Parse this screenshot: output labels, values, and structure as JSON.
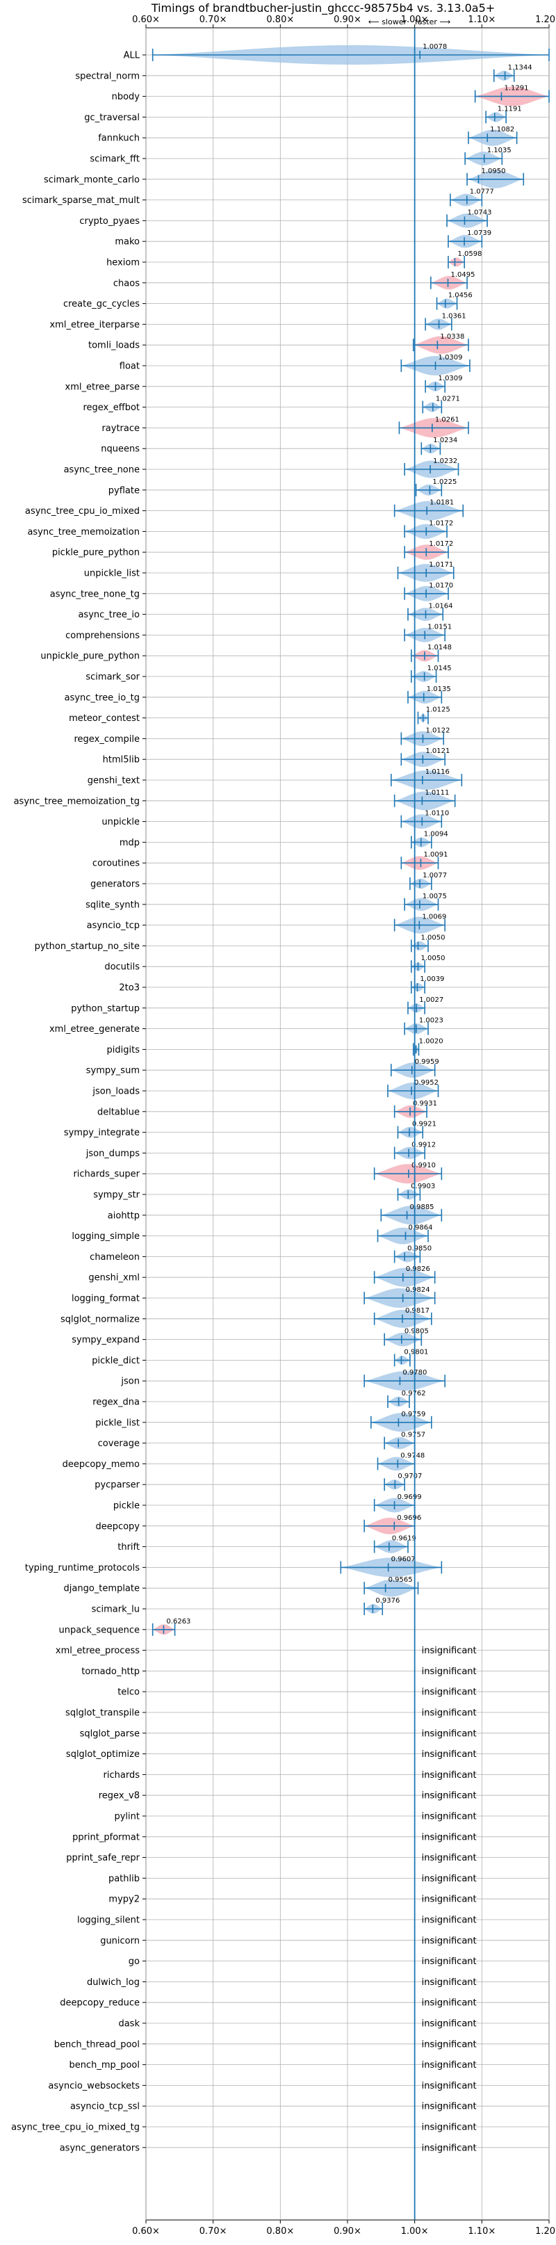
{
  "chart_data": {
    "type": "violin",
    "title": "Timings of brandtbucher-justin_ghccc-98575b4 vs. 3.13.0a5+",
    "annotation_slower": "⟵ slower",
    "annotation_faster": "faster ⟶",
    "xlim": [
      0.6,
      1.2
    ],
    "xticks": [
      0.6,
      0.7,
      0.8,
      0.9,
      1.0,
      1.1,
      1.2
    ],
    "xtick_labels": [
      "0.60×",
      "0.70×",
      "0.80×",
      "0.90×",
      "1.00×",
      "1.10×",
      "1.20×"
    ],
    "reference_line": 1.0,
    "grid": true,
    "colors": {
      "line": "#1f77b4",
      "violin_blue": "#9ec3e6",
      "violin_red": "#f4a6b0",
      "grid": "#b0b0b0"
    },
    "insignificant_label": "insignificant",
    "rows": [
      {
        "name": "ALL",
        "value": 1.0078,
        "label": "1.0078",
        "low": 0.61,
        "high": 1.2,
        "red": false
      },
      {
        "name": "spectral_norm",
        "value": 1.1344,
        "label": "1.1344",
        "low": 1.118,
        "high": 1.148,
        "red": false
      },
      {
        "name": "nbody",
        "value": 1.1291,
        "label": "1.1291",
        "low": 1.09,
        "high": 1.2,
        "red": true
      },
      {
        "name": "gc_traversal",
        "value": 1.1191,
        "label": "1.1191",
        "low": 1.106,
        "high": 1.136,
        "red": false
      },
      {
        "name": "fannkuch",
        "value": 1.1082,
        "label": "1.1082",
        "low": 1.08,
        "high": 1.152,
        "red": false
      },
      {
        "name": "scimark_fft",
        "value": 1.1035,
        "label": "1.1035",
        "low": 1.075,
        "high": 1.13,
        "red": false
      },
      {
        "name": "scimark_monte_carlo",
        "value": 1.095,
        "label": "1.0950",
        "low": 1.078,
        "high": 1.162,
        "red": false
      },
      {
        "name": "scimark_sparse_mat_mult",
        "value": 1.0777,
        "label": "1.0777",
        "low": 1.053,
        "high": 1.1,
        "red": false
      },
      {
        "name": "crypto_pyaes",
        "value": 1.0743,
        "label": "1.0743",
        "low": 1.048,
        "high": 1.108,
        "red": false
      },
      {
        "name": "mako",
        "value": 1.0739,
        "label": "1.0739",
        "low": 1.05,
        "high": 1.1,
        "red": false
      },
      {
        "name": "hexiom",
        "value": 1.0598,
        "label": "1.0598",
        "low": 1.05,
        "high": 1.074,
        "red": true
      },
      {
        "name": "chaos",
        "value": 1.0495,
        "label": "1.0495",
        "low": 1.024,
        "high": 1.078,
        "red": true
      },
      {
        "name": "create_gc_cycles",
        "value": 1.0456,
        "label": "1.0456",
        "low": 1.033,
        "high": 1.063,
        "red": false
      },
      {
        "name": "xml_etree_iterparse",
        "value": 1.0361,
        "label": "1.0361",
        "low": 1.016,
        "high": 1.055,
        "red": false
      },
      {
        "name": "tomli_loads",
        "value": 1.0338,
        "label": "1.0338",
        "low": 0.998,
        "high": 1.08,
        "red": true
      },
      {
        "name": "float",
        "value": 1.0309,
        "label": "1.0309",
        "low": 0.98,
        "high": 1.082,
        "red": false
      },
      {
        "name": "xml_etree_parse",
        "value": 1.0309,
        "label": "1.0309",
        "low": 1.016,
        "high": 1.045,
        "red": false
      },
      {
        "name": "regex_effbot",
        "value": 1.0271,
        "label": "1.0271",
        "low": 1.012,
        "high": 1.04,
        "red": false
      },
      {
        "name": "raytrace",
        "value": 1.0261,
        "label": "1.0261",
        "low": 0.977,
        "high": 1.08,
        "red": true
      },
      {
        "name": "nqueens",
        "value": 1.0234,
        "label": "1.0234",
        "low": 1.01,
        "high": 1.038,
        "red": false
      },
      {
        "name": "async_tree_none",
        "value": 1.0232,
        "label": "1.0232",
        "low": 0.985,
        "high": 1.065,
        "red": false
      },
      {
        "name": "pyflate",
        "value": 1.0225,
        "label": "1.0225",
        "low": 1.002,
        "high": 1.04,
        "red": false
      },
      {
        "name": "async_tree_cpu_io_mixed",
        "value": 1.0181,
        "label": "1.0181",
        "low": 0.97,
        "high": 1.072,
        "red": false
      },
      {
        "name": "async_tree_memoization",
        "value": 1.0172,
        "label": "1.0172",
        "low": 0.985,
        "high": 1.048,
        "red": false
      },
      {
        "name": "pickle_pure_python",
        "value": 1.0172,
        "label": "1.0172",
        "low": 0.985,
        "high": 1.05,
        "red": true
      },
      {
        "name": "unpickle_list",
        "value": 1.0171,
        "label": "1.0171",
        "low": 0.975,
        "high": 1.058,
        "red": false
      },
      {
        "name": "async_tree_none_tg",
        "value": 1.017,
        "label": "1.0170",
        "low": 0.985,
        "high": 1.05,
        "red": false
      },
      {
        "name": "async_tree_io",
        "value": 1.0164,
        "label": "1.0164",
        "low": 0.99,
        "high": 1.042,
        "red": false
      },
      {
        "name": "comprehensions",
        "value": 1.0151,
        "label": "1.0151",
        "low": 0.985,
        "high": 1.045,
        "red": false
      },
      {
        "name": "unpickle_pure_python",
        "value": 1.0148,
        "label": "1.0148",
        "low": 0.995,
        "high": 1.035,
        "red": true
      },
      {
        "name": "scimark_sor",
        "value": 1.0145,
        "label": "1.0145",
        "low": 0.995,
        "high": 1.032,
        "red": false
      },
      {
        "name": "async_tree_io_tg",
        "value": 1.0135,
        "label": "1.0135",
        "low": 0.99,
        "high": 1.04,
        "red": false
      },
      {
        "name": "meteor_contest",
        "value": 1.0125,
        "label": "1.0125",
        "low": 1.005,
        "high": 1.02,
        "red": false
      },
      {
        "name": "regex_compile",
        "value": 1.0122,
        "label": "1.0122",
        "low": 0.98,
        "high": 1.043,
        "red": false
      },
      {
        "name": "html5lib",
        "value": 1.0121,
        "label": "1.0121",
        "low": 0.98,
        "high": 1.045,
        "red": false
      },
      {
        "name": "genshi_text",
        "value": 1.0116,
        "label": "1.0116",
        "low": 0.965,
        "high": 1.07,
        "red": false
      },
      {
        "name": "async_tree_memoization_tg",
        "value": 1.0111,
        "label": "1.0111",
        "low": 0.97,
        "high": 1.06,
        "red": false
      },
      {
        "name": "unpickle",
        "value": 1.011,
        "label": "1.0110",
        "low": 0.98,
        "high": 1.04,
        "red": false
      },
      {
        "name": "mdp",
        "value": 1.0094,
        "label": "1.0094",
        "low": 0.995,
        "high": 1.025,
        "red": false
      },
      {
        "name": "coroutines",
        "value": 1.0091,
        "label": "1.0091",
        "low": 0.98,
        "high": 1.035,
        "red": true
      },
      {
        "name": "generators",
        "value": 1.0077,
        "label": "1.0077",
        "low": 0.993,
        "high": 1.025,
        "red": false
      },
      {
        "name": "sqlite_synth",
        "value": 1.0075,
        "label": "1.0075",
        "low": 0.985,
        "high": 1.035,
        "red": false
      },
      {
        "name": "asyncio_tcp",
        "value": 1.0069,
        "label": "1.0069",
        "low": 0.97,
        "high": 1.045,
        "red": false
      },
      {
        "name": "python_startup_no_site",
        "value": 1.005,
        "label": "1.0050",
        "low": 0.995,
        "high": 1.02,
        "red": false
      },
      {
        "name": "docutils",
        "value": 1.005,
        "label": "1.0050",
        "low": 0.995,
        "high": 1.015,
        "red": false
      },
      {
        "name": "2to3",
        "value": 1.0039,
        "label": "1.0039",
        "low": 0.995,
        "high": 1.015,
        "red": false
      },
      {
        "name": "python_startup",
        "value": 1.0027,
        "label": "1.0027",
        "low": 0.99,
        "high": 1.015,
        "red": false
      },
      {
        "name": "xml_etree_generate",
        "value": 1.0023,
        "label": "1.0023",
        "low": 0.985,
        "high": 1.02,
        "red": false
      },
      {
        "name": "pidigits",
        "value": 1.002,
        "label": "1.0020",
        "low": 0.998,
        "high": 1.006,
        "red": false
      },
      {
        "name": "sympy_sum",
        "value": 0.9959,
        "label": "0.9959",
        "low": 0.965,
        "high": 1.03,
        "red": false
      },
      {
        "name": "json_loads",
        "value": 0.9952,
        "label": "0.9952",
        "low": 0.96,
        "high": 1.035,
        "red": false
      },
      {
        "name": "deltablue",
        "value": 0.9931,
        "label": "0.9931",
        "low": 0.97,
        "high": 1.018,
        "red": true
      },
      {
        "name": "sympy_integrate",
        "value": 0.9921,
        "label": "0.9921",
        "low": 0.975,
        "high": 1.012,
        "red": false
      },
      {
        "name": "json_dumps",
        "value": 0.9912,
        "label": "0.9912",
        "low": 0.97,
        "high": 1.015,
        "red": false
      },
      {
        "name": "richards_super",
        "value": 0.991,
        "label": "0.9910",
        "low": 0.94,
        "high": 1.04,
        "red": true
      },
      {
        "name": "sympy_str",
        "value": 0.9903,
        "label": "0.9903",
        "low": 0.975,
        "high": 1.008,
        "red": false
      },
      {
        "name": "aiohttp",
        "value": 0.9885,
        "label": "0.9885",
        "low": 0.95,
        "high": 1.04,
        "red": false
      },
      {
        "name": "logging_simple",
        "value": 0.9864,
        "label": "0.9864",
        "low": 0.945,
        "high": 1.02,
        "red": false
      },
      {
        "name": "chameleon",
        "value": 0.985,
        "label": "0.9850",
        "low": 0.97,
        "high": 1.008,
        "red": false
      },
      {
        "name": "genshi_xml",
        "value": 0.9826,
        "label": "0.9826",
        "low": 0.94,
        "high": 1.03,
        "red": false
      },
      {
        "name": "logging_format",
        "value": 0.9824,
        "label": "0.9824",
        "low": 0.925,
        "high": 1.03,
        "red": false
      },
      {
        "name": "sqlglot_normalize",
        "value": 0.9817,
        "label": "0.9817",
        "low": 0.94,
        "high": 1.025,
        "red": false
      },
      {
        "name": "sympy_expand",
        "value": 0.9805,
        "label": "0.9805",
        "low": 0.955,
        "high": 1.01,
        "red": false
      },
      {
        "name": "pickle_dict",
        "value": 0.9801,
        "label": "0.9801",
        "low": 0.97,
        "high": 0.993,
        "red": false
      },
      {
        "name": "json",
        "value": 0.978,
        "label": "0.9780",
        "low": 0.925,
        "high": 1.045,
        "red": false
      },
      {
        "name": "regex_dna",
        "value": 0.9762,
        "label": "0.9762",
        "low": 0.96,
        "high": 0.992,
        "red": false
      },
      {
        "name": "pickle_list",
        "value": 0.9759,
        "label": "0.9759",
        "low": 0.935,
        "high": 1.025,
        "red": false
      },
      {
        "name": "coverage",
        "value": 0.9757,
        "label": "0.9757",
        "low": 0.955,
        "high": 1.0,
        "red": false
      },
      {
        "name": "deepcopy_memo",
        "value": 0.9748,
        "label": "0.9748",
        "low": 0.945,
        "high": 1.0,
        "red": false
      },
      {
        "name": "pycparser",
        "value": 0.9707,
        "label": "0.9707",
        "low": 0.955,
        "high": 0.985,
        "red": false
      },
      {
        "name": "pickle",
        "value": 0.9699,
        "label": "0.9699",
        "low": 0.94,
        "high": 1.0,
        "red": false
      },
      {
        "name": "deepcopy",
        "value": 0.9696,
        "label": "0.9696",
        "low": 0.925,
        "high": 1.0,
        "red": true
      },
      {
        "name": "thrift",
        "value": 0.9619,
        "label": "0.9619",
        "low": 0.94,
        "high": 0.99,
        "red": false
      },
      {
        "name": "typing_runtime_protocols",
        "value": 0.9607,
        "label": "0.9607",
        "low": 0.89,
        "high": 1.04,
        "red": false
      },
      {
        "name": "django_template",
        "value": 0.9565,
        "label": "0.9565",
        "low": 0.925,
        "high": 1.005,
        "red": false
      },
      {
        "name": "scimark_lu",
        "value": 0.9376,
        "label": "0.9376",
        "low": 0.925,
        "high": 0.952,
        "red": false
      },
      {
        "name": "unpack_sequence",
        "value": 0.6263,
        "label": "0.6263",
        "low": 0.61,
        "high": 0.643,
        "red": true
      },
      {
        "name": "xml_etree_process",
        "insignificant": true
      },
      {
        "name": "tornado_http",
        "insignificant": true
      },
      {
        "name": "telco",
        "insignificant": true
      },
      {
        "name": "sqlglot_transpile",
        "insignificant": true
      },
      {
        "name": "sqlglot_parse",
        "insignificant": true
      },
      {
        "name": "sqlglot_optimize",
        "insignificant": true
      },
      {
        "name": "richards",
        "insignificant": true
      },
      {
        "name": "regex_v8",
        "insignificant": true
      },
      {
        "name": "pylint",
        "insignificant": true
      },
      {
        "name": "pprint_pformat",
        "insignificant": true
      },
      {
        "name": "pprint_safe_repr",
        "insignificant": true
      },
      {
        "name": "pathlib",
        "insignificant": true
      },
      {
        "name": "mypy2",
        "insignificant": true
      },
      {
        "name": "logging_silent",
        "insignificant": true
      },
      {
        "name": "gunicorn",
        "insignificant": true
      },
      {
        "name": "go",
        "insignificant": true
      },
      {
        "name": "dulwich_log",
        "insignificant": true
      },
      {
        "name": "deepcopy_reduce",
        "insignificant": true
      },
      {
        "name": "dask",
        "insignificant": true
      },
      {
        "name": "bench_thread_pool",
        "insignificant": true
      },
      {
        "name": "bench_mp_pool",
        "insignificant": true
      },
      {
        "name": "asyncio_websockets",
        "insignificant": true
      },
      {
        "name": "asyncio_tcp_ssl",
        "insignificant": true
      },
      {
        "name": "async_tree_cpu_io_mixed_tg",
        "insignificant": true
      },
      {
        "name": "async_generators",
        "insignificant": true
      }
    ]
  }
}
